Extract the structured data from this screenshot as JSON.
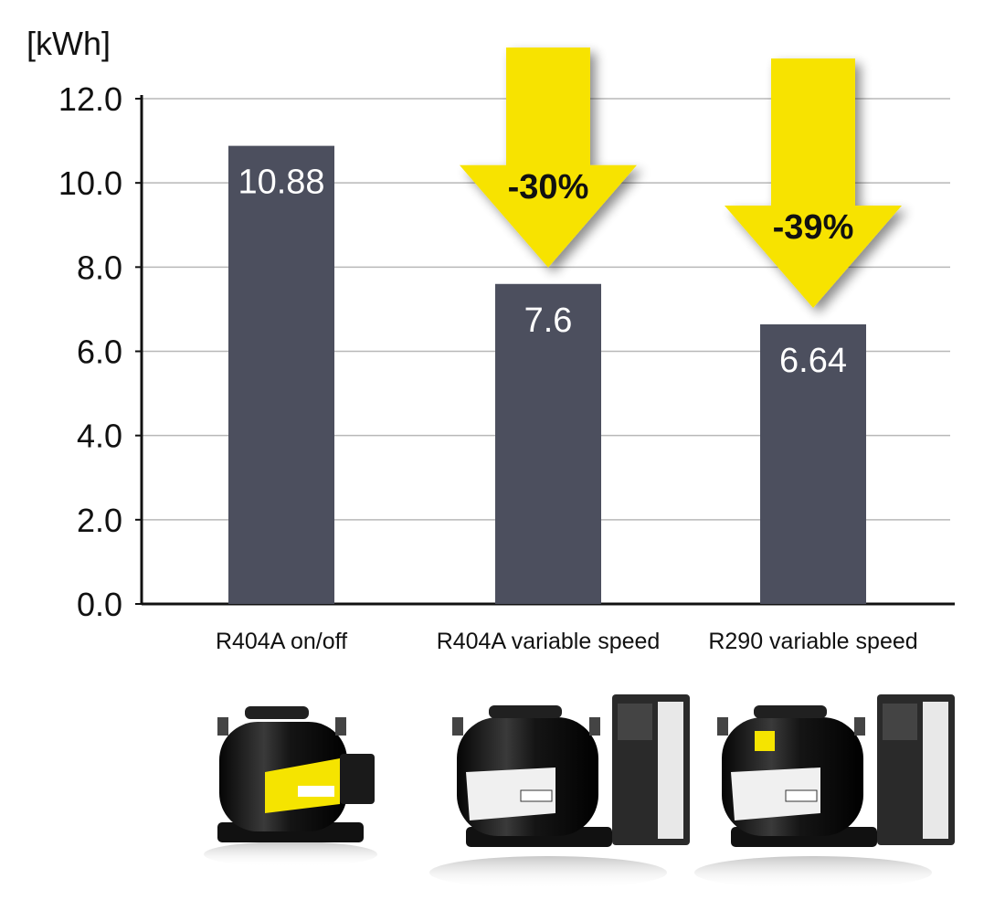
{
  "chart_data": {
    "type": "bar",
    "unit_label": "[kWh]",
    "title": "",
    "xlabel": "",
    "ylabel": "",
    "categories": [
      "R404A on/off",
      "R404A variable speed",
      "R290 variable speed"
    ],
    "values": [
      10.88,
      7.6,
      6.64
    ],
    "value_labels": [
      "10.88",
      "7.6",
      "6.64"
    ],
    "ylim": [
      0,
      12
    ],
    "yticks": [
      0,
      2,
      4,
      6,
      8,
      10,
      12
    ],
    "ytick_labels": [
      "0.0",
      "2.0",
      "4.0",
      "6.0",
      "8.0",
      "10.0",
      "12.0"
    ],
    "grid": true,
    "annotations": [
      {
        "category": "R404A variable speed",
        "text": "-30%"
      },
      {
        "category": "R290 variable speed",
        "text": "-39%"
      }
    ],
    "colors": {
      "bar": "#4c4f5e",
      "arrow": "#f7e300",
      "grid": "#b8b8b8",
      "axis": "#111111"
    }
  },
  "images": [
    {
      "name": "compressor-on-off-icon"
    },
    {
      "name": "compressor-variable-speed-icon"
    },
    {
      "name": "compressor-r290-variable-speed-icon"
    }
  ]
}
